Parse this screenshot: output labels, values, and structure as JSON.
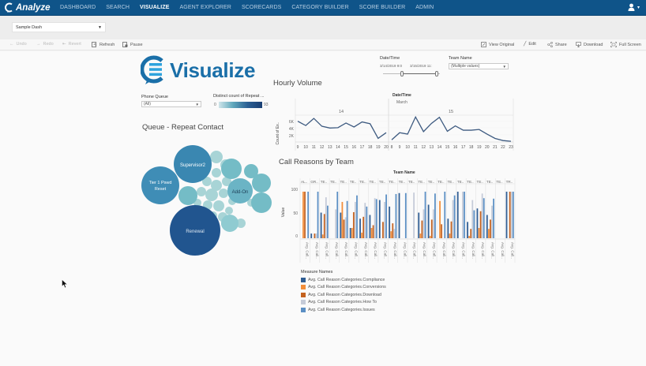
{
  "app": {
    "brand": "Analyze",
    "nav": [
      {
        "label": "DASHBOARD",
        "active": false
      },
      {
        "label": "SEARCH",
        "active": false
      },
      {
        "label": "VISUALIZE",
        "active": true
      },
      {
        "label": "AGENT EXPLORER",
        "active": false
      },
      {
        "label": "SCORECARDS",
        "active": false
      },
      {
        "label": "CATEGORY BUILDER",
        "active": false
      },
      {
        "label": "SCORE BUILDER",
        "active": false
      },
      {
        "label": "ADMIN",
        "active": false
      }
    ],
    "user_icon": "user-icon",
    "colors": {
      "nav_bg": "#0f5489",
      "accent": "#1a6fa8"
    }
  },
  "dashboard_select": {
    "value": "Sample Dash"
  },
  "toolbar": {
    "undo": "Undo",
    "redo": "Redo",
    "revert": "Revert",
    "refresh": "Refresh",
    "pause": "Pause",
    "view_original": "View Original",
    "edit": "Edit",
    "share": "Share",
    "download": "Download",
    "full_screen": "Full Screen"
  },
  "viz": {
    "logo_text": "Visualize",
    "filters": {
      "date_time_label": "Date/Time",
      "date_start": "3/14/2019 9:0",
      "date_end": "3/15/2019 11:",
      "team_name_label": "Team Name",
      "team_name_value": "(Multiple values)",
      "phone_queue_label": "Phone Queue",
      "phone_queue_value": "(All)",
      "color_legend_label": "Distinct count of Repeat ...",
      "color_min": "0",
      "color_max": "93"
    },
    "queue_title": "Queue - Repeat Contact",
    "bubbles": [
      "Supervisor2",
      "Tier 1 Pswd Reset",
      "Add-On",
      "Renewal"
    ],
    "hourly_title": "Hourly Volume",
    "hourly_header": "Date/Time",
    "hourly_month": "March",
    "hourly_day1": "14",
    "hourly_day2": "15",
    "hourly_ylabel": "Count of Ex..",
    "hourly_yticks": [
      "6K",
      "4K",
      "2K"
    ],
    "call_reasons_title": "Call Reasons by Team",
    "team_name_header": "Team Name",
    "value_label": "Value",
    "value_ticks": [
      "100",
      "50",
      "0"
    ],
    "bar_x_label": "Avg. Call..",
    "legend_title": "Measure Names",
    "legend": [
      {
        "label": "Avg. Call Reason Categories.Compliance",
        "color": "#2f5d93"
      },
      {
        "label": "Avg. Call Reason Categories.Conversions",
        "color": "#f28e3a"
      },
      {
        "label": "Avg. Call Reason Categories.Download",
        "color": "#c4621f"
      },
      {
        "label": "Avg. Call Reason Categories.How To",
        "color": "#c5cbd8"
      },
      {
        "label": "Avg. Call Reason Categories.Issues",
        "color": "#5b8fc4"
      }
    ]
  },
  "chart_data": [
    {
      "type": "line",
      "title": "Hourly Volume",
      "xlabel": "Date/Time (March)",
      "ylabel": "Count of Ex..",
      "ylim": [
        0,
        7500
      ],
      "panels": [
        {
          "day": "14",
          "x": [
            9,
            10,
            11,
            12,
            13,
            14,
            15,
            16,
            17,
            18,
            19,
            20
          ],
          "values": [
            5800,
            4600,
            6600,
            4400,
            3900,
            4000,
            5300,
            4200,
            5600,
            5100,
            1000,
            2600
          ]
        },
        {
          "day": "15",
          "x": [
            8,
            9,
            10,
            11,
            12,
            13,
            14,
            15,
            16,
            17,
            18,
            19,
            20,
            21,
            22,
            23
          ],
          "values": [
            600,
            2600,
            2200,
            7000,
            2900,
            5200,
            6900,
            3000,
            4500,
            3300,
            3300,
            3500,
            2200,
            1000,
            400,
            200
          ]
        }
      ]
    },
    {
      "type": "bar",
      "title": "Call Reasons by Team",
      "xlabel": "Team Name",
      "ylabel": "Value",
      "ylim": [
        0,
        105
      ],
      "categories": [
        "AL..",
        "GR..",
        "TE..",
        "TE..",
        "TE..",
        "TE..",
        "TE..",
        "TE..",
        "TE..",
        "TE..",
        "TE..",
        "TE..",
        "TE..",
        "TE..",
        "TE..",
        "TE..",
        "TE..",
        "TE..",
        "TE..",
        "TE..",
        "TE..",
        "TR.."
      ],
      "series": [
        {
          "name": "Compliance",
          "values": [
            0,
            10,
            55,
            0,
            55,
            22,
            42,
            50,
            82,
            68,
            97,
            0,
            55,
            72,
            0,
            42,
            100,
            35,
            64,
            50,
            0,
            100
          ]
        },
        {
          "name": "Conversions",
          "values": [
            100,
            0,
            8,
            0,
            78,
            22,
            12,
            22,
            0,
            15,
            0,
            0,
            10,
            5,
            80,
            10,
            0,
            5,
            22,
            20,
            0,
            0
          ]
        },
        {
          "name": "Download",
          "values": [
            100,
            10,
            52,
            0,
            40,
            56,
            46,
            28,
            35,
            32,
            0,
            0,
            38,
            40,
            30,
            36,
            0,
            20,
            58,
            40,
            0,
            100
          ]
        },
        {
          "name": "How To",
          "values": [
            0,
            10,
            88,
            62,
            45,
            78,
            76,
            86,
            78,
            20,
            0,
            98,
            62,
            62,
            0,
            82,
            100,
            82,
            96,
            70,
            0,
            100
          ]
        },
        {
          "name": "Issues",
          "values": [
            100,
            100,
            70,
            100,
            80,
            92,
            68,
            84,
            94,
            95,
            97,
            0,
            100,
            96,
            100,
            92,
            100,
            60,
            86,
            85,
            0,
            100
          ]
        }
      ]
    }
  ]
}
